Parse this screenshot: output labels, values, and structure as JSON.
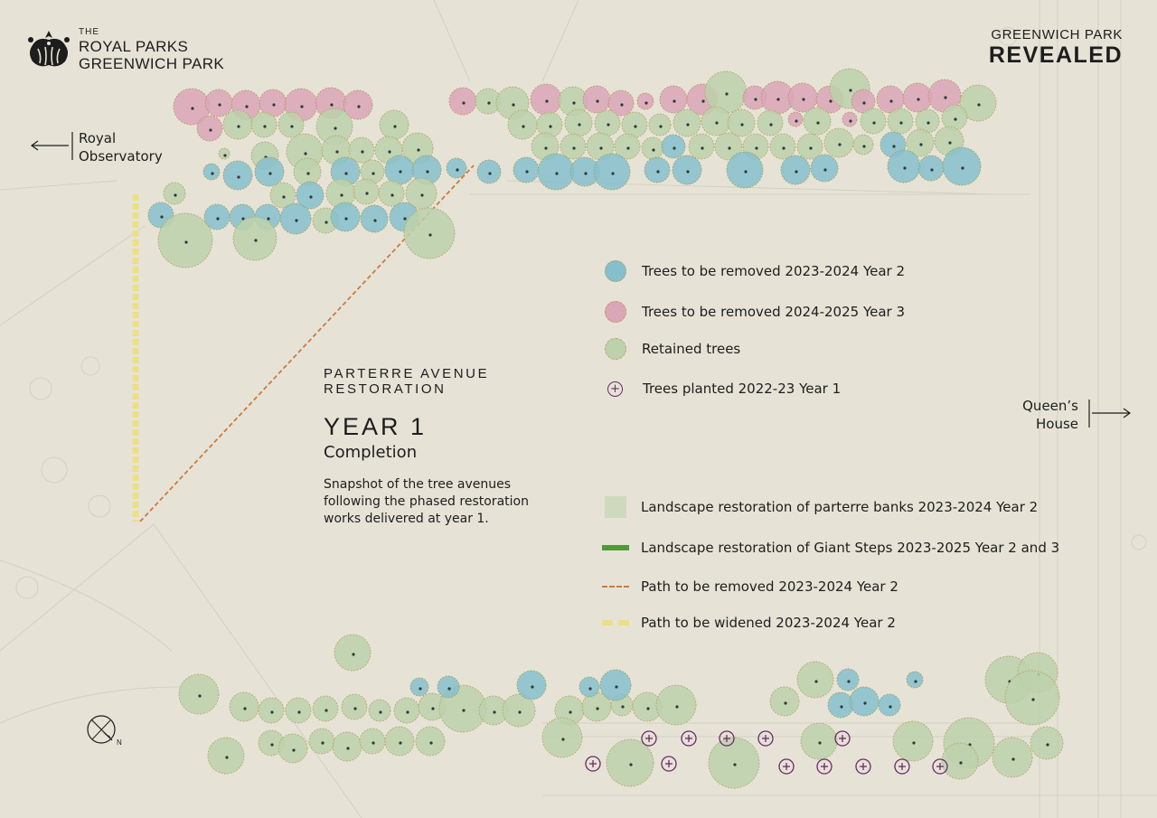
{
  "brand": {
    "line1": "THE",
    "line2": "ROYAL PARKS",
    "line3": "GREENWICH PARK"
  },
  "header": {
    "series_small": "GREENWICH PARK",
    "series_big": "REVEALED"
  },
  "directions": {
    "observatory_line1": "Royal",
    "observatory_line2": "Observatory",
    "queens_line1": "Queen’s",
    "queens_line2": "House"
  },
  "title": {
    "line1": "PARTERRE AVENUE",
    "line2": "RESTORATION",
    "year": "YEAR 1",
    "subtitle": "Completion",
    "description": "Snapshot of the tree avenues following the phased restoration works delivered at year 1."
  },
  "legend": [
    {
      "key": "blue",
      "label": "Trees to be removed 2023-2024 Year 2",
      "color": "#86bfcc"
    },
    {
      "key": "pink",
      "label": "Trees to be removed 2024-2025 Year 3",
      "color": "#dba6b8"
    },
    {
      "key": "green",
      "label": "Retained trees",
      "color": "#bcd1ac"
    },
    {
      "key": "planted",
      "label": "Trees planted 2022-23 Year 1",
      "color": "#6b2a6b"
    },
    {
      "key": "banks",
      "label": "Landscape restoration of parterre banks 2023-2024 Year 2",
      "color": "#cfd9be"
    },
    {
      "key": "steps",
      "label": "Landscape restoration of Giant Steps 2023-2025 Year 2 and 3",
      "color": "#4f9b3c"
    },
    {
      "key": "path_removed",
      "label": "Path to be removed 2023-2024 Year 2",
      "color": "#d2783a"
    },
    {
      "key": "path_widened",
      "label": "Path to be widened 2023-2024 Year 2",
      "color": "#ecdf86"
    }
  ],
  "compass": {
    "label": "N"
  },
  "colors": {
    "background": "#e6e3d6",
    "blue_tree": "#86bfcc",
    "pink_tree": "#dba6b8",
    "green_tree": "#bcd1ac",
    "planted": "#6b2a6b",
    "path_removed": "#d2783a",
    "path_widened": "#ecdf86"
  }
}
